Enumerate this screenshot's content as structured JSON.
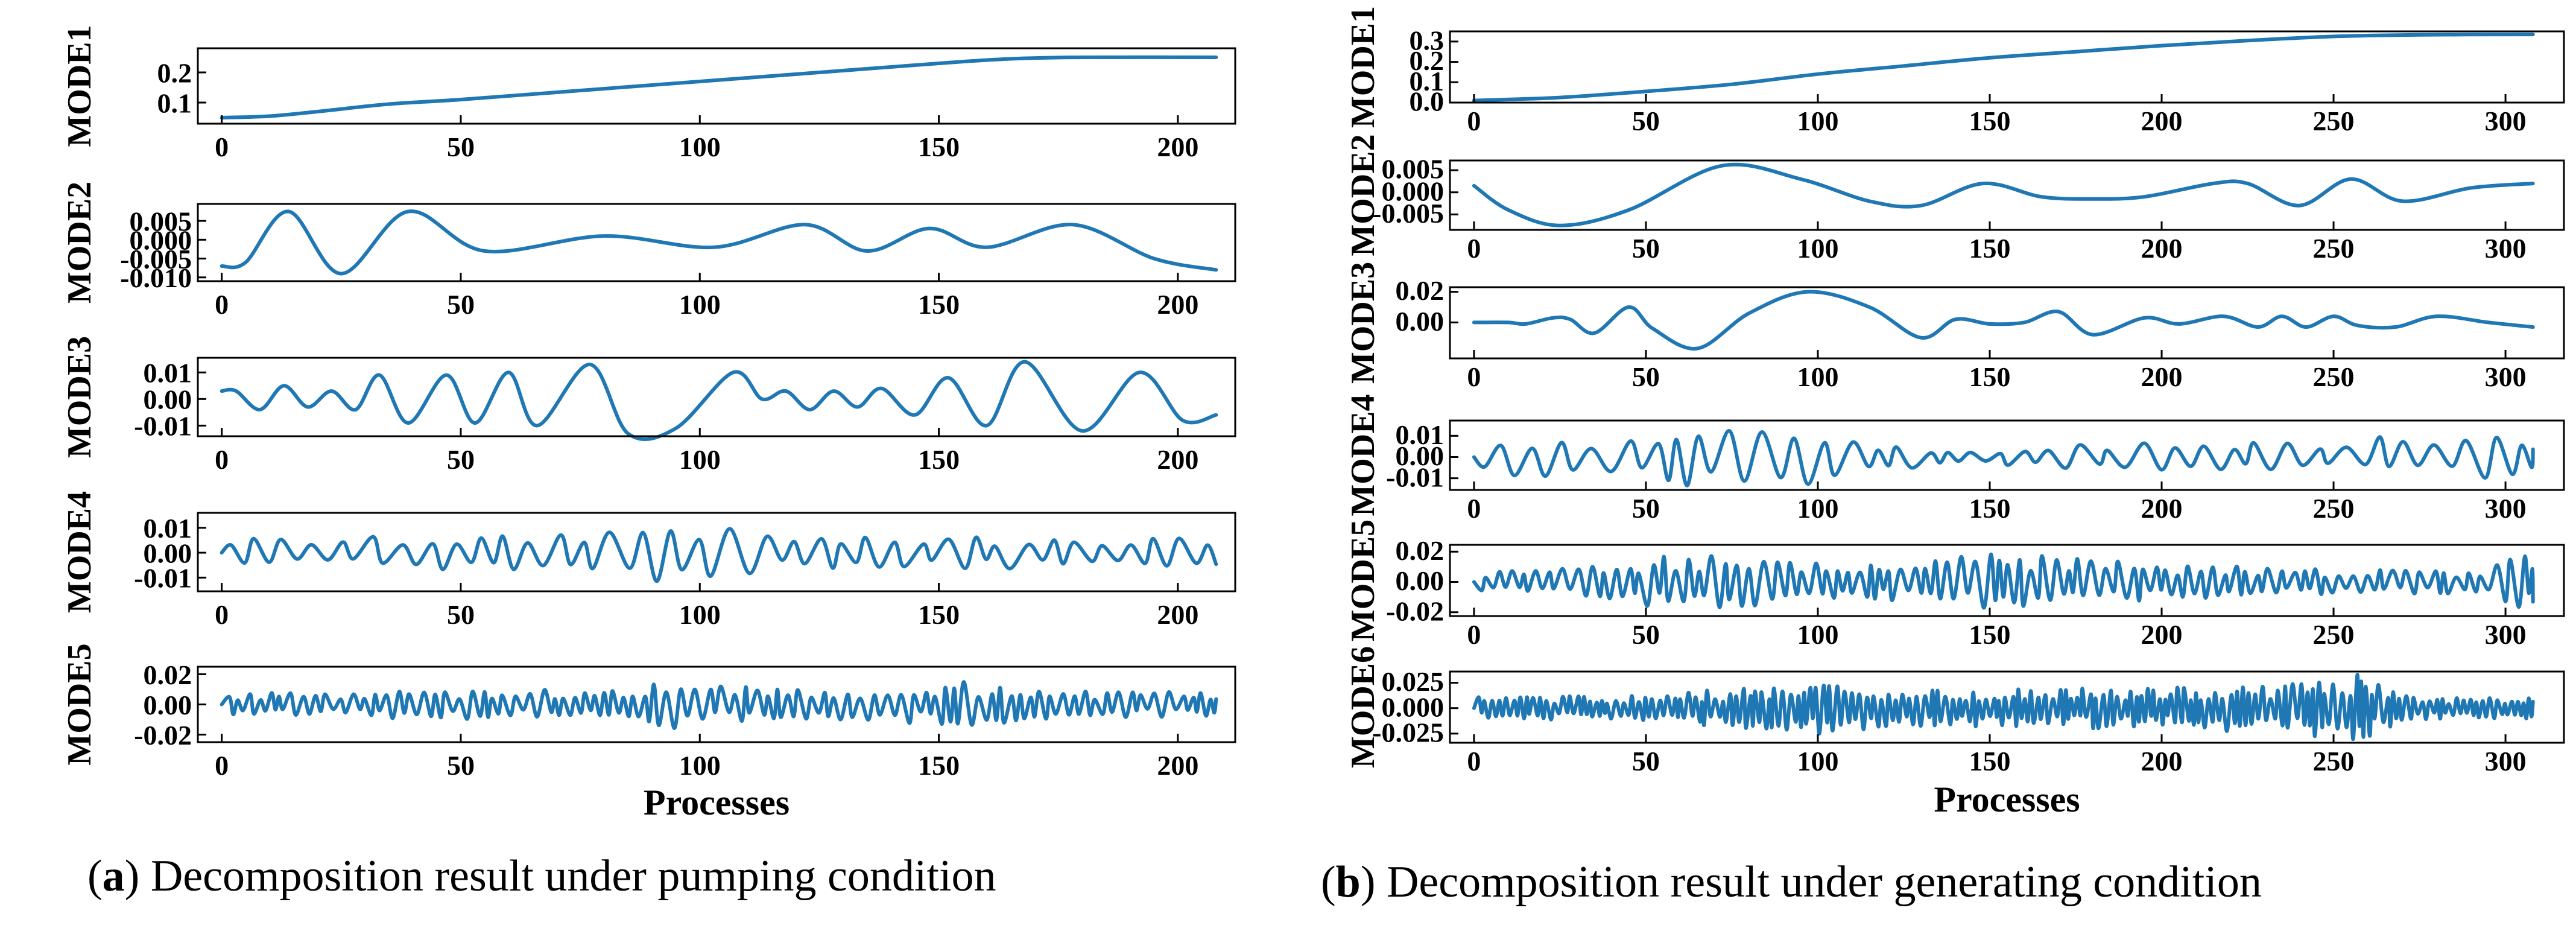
{
  "chart_data": [
    {
      "id": "a",
      "type": "line",
      "panel_caption_letter": "a",
      "panel_caption_text": " Decomposition result under pumping condition",
      "xlabel": "Processes",
      "xlim": [
        -5,
        212
      ],
      "xticks": [
        0,
        50,
        100,
        150,
        200
      ],
      "color": "#1f77b4",
      "subplots": [
        {
          "ylabel": "MODE1",
          "ylim": [
            0.03,
            0.28
          ],
          "yticks": [
            0.1,
            0.2
          ],
          "yticklabels": [
            "0.1",
            "0.2"
          ],
          "kind": "trend",
          "x_end": 208,
          "points": [
            [
              0,
              0.05
            ],
            [
              10,
              0.055
            ],
            [
              20,
              0.07
            ],
            [
              35,
              0.095
            ],
            [
              50,
              0.11
            ],
            [
              75,
              0.14
            ],
            [
              100,
              0.17
            ],
            [
              125,
              0.2
            ],
            [
              150,
              0.23
            ],
            [
              165,
              0.245
            ],
            [
              180,
              0.25
            ],
            [
              208,
              0.25
            ]
          ]
        },
        {
          "ylabel": "MODE2",
          "ylim": [
            -0.011,
            0.0095
          ],
          "yticks": [
            0.005,
            0.0,
            -0.005,
            -0.01
          ],
          "yticklabels": [
            "0.005",
            "0.000",
            "-0.005",
            "-0.010"
          ],
          "kind": "smooth",
          "x_end": 208,
          "points": [
            [
              0,
              -0.007
            ],
            [
              5,
              -0.006
            ],
            [
              14,
              0.0075
            ],
            [
              25,
              -0.009
            ],
            [
              39,
              0.0075
            ],
            [
              55,
              -0.003
            ],
            [
              80,
              0.001
            ],
            [
              103,
              -0.002
            ],
            [
              122,
              0.004
            ],
            [
              135,
              -0.003
            ],
            [
              148,
              0.003
            ],
            [
              160,
              -0.002
            ],
            [
              178,
              0.004
            ],
            [
              195,
              -0.005
            ],
            [
              208,
              -0.008
            ]
          ]
        },
        {
          "ylabel": "MODE3",
          "ylim": [
            -0.014,
            0.0155
          ],
          "yticks": [
            0.01,
            0.0,
            -0.01
          ],
          "yticklabels": [
            "0.01",
            "0.00",
            "-0.01"
          ],
          "kind": "smooth",
          "x_end": 208,
          "points": [
            [
              0,
              0.003
            ],
            [
              3,
              0.003
            ],
            [
              8,
              -0.004
            ],
            [
              13,
              0.005
            ],
            [
              18,
              -0.003
            ],
            [
              23,
              0.003
            ],
            [
              28,
              -0.004
            ],
            [
              33,
              0.009
            ],
            [
              39,
              -0.009
            ],
            [
              47,
              0.009
            ],
            [
              53,
              -0.009
            ],
            [
              60,
              0.01
            ],
            [
              66,
              -0.01
            ],
            [
              77,
              0.013
            ],
            [
              85,
              -0.013
            ],
            [
              95,
              -0.011
            ],
            [
              107,
              0.01
            ],
            [
              113,
              0.0
            ],
            [
              118,
              0.003
            ],
            [
              123,
              -0.004
            ],
            [
              128,
              0.003
            ],
            [
              133,
              -0.003
            ],
            [
              138,
              0.004
            ],
            [
              145,
              -0.006
            ],
            [
              152,
              0.008
            ],
            [
              160,
              -0.01
            ],
            [
              168,
              0.014
            ],
            [
              180,
              -0.012
            ],
            [
              192,
              0.01
            ],
            [
              201,
              -0.008
            ],
            [
              208,
              -0.006
            ]
          ]
        },
        {
          "ylabel": "MODE4",
          "ylim": [
            -0.0155,
            0.016
          ],
          "yticks": [
            0.01,
            0.0,
            -0.01
          ],
          "yticklabels": [
            "0.01",
            "0.00",
            "-0.01"
          ],
          "kind": "osc",
          "x_end": 208,
          "period": 6.0,
          "seed": 7,
          "envelope": [
            [
              0,
              0.006
            ],
            [
              60,
              0.007
            ],
            [
              75,
              0.01
            ],
            [
              85,
              0.011
            ],
            [
              95,
              0.014
            ],
            [
              105,
              0.01
            ],
            [
              130,
              0.006
            ],
            [
              160,
              0.007
            ],
            [
              185,
              0.008
            ],
            [
              208,
              0.005
            ]
          ]
        },
        {
          "ylabel": "MODE5",
          "ylim": [
            -0.025,
            0.025
          ],
          "yticks": [
            0.02,
            0.0,
            -0.02
          ],
          "yticklabels": [
            "0.02",
            "0.00",
            "-0.02"
          ],
          "kind": "osc",
          "x_end": 208,
          "period": 2.4,
          "seed": 13,
          "envelope": [
            [
              0,
              0.007
            ],
            [
              40,
              0.01
            ],
            [
              80,
              0.01
            ],
            [
              92,
              0.016
            ],
            [
              96,
              0.022
            ],
            [
              102,
              0.014
            ],
            [
              120,
              0.01
            ],
            [
              148,
              0.013
            ],
            [
              152,
              0.016
            ],
            [
              175,
              0.009
            ],
            [
              208,
              0.008
            ]
          ]
        }
      ]
    },
    {
      "id": "b",
      "type": "line",
      "panel_caption_letter": "b",
      "panel_caption_text": " Decomposition result under generating condition",
      "xlabel": "Processes",
      "xlim": [
        -7,
        317
      ],
      "xticks": [
        0,
        50,
        100,
        150,
        200,
        250,
        300
      ],
      "color": "#1f77b4",
      "subplots": [
        {
          "ylabel": "MODE1",
          "ylim": [
            0.0,
            0.35
          ],
          "yticks": [
            0.0,
            0.1,
            0.2,
            0.3
          ],
          "yticklabels": [
            "0.0",
            "0.1",
            "0.2",
            "0.3"
          ],
          "kind": "trend",
          "x_end": 308,
          "points": [
            [
              0,
              0.01
            ],
            [
              25,
              0.025
            ],
            [
              50,
              0.055
            ],
            [
              75,
              0.09
            ],
            [
              100,
              0.14
            ],
            [
              125,
              0.18
            ],
            [
              150,
              0.22
            ],
            [
              175,
              0.25
            ],
            [
              200,
              0.28
            ],
            [
              225,
              0.305
            ],
            [
              250,
              0.325
            ],
            [
              275,
              0.333
            ],
            [
              308,
              0.335
            ]
          ]
        },
        {
          "ylabel": "MODE2",
          "ylim": [
            -0.0085,
            0.0072
          ],
          "yticks": [
            0.005,
            0.0,
            -0.005
          ],
          "yticklabels": [
            "0.005",
            "0.000",
            "-0.005"
          ],
          "kind": "smooth",
          "x_end": 308,
          "points": [
            [
              0,
              0.0015
            ],
            [
              10,
              -0.004
            ],
            [
              25,
              -0.0075
            ],
            [
              45,
              -0.004
            ],
            [
              72,
              0.006
            ],
            [
              95,
              0.003
            ],
            [
              115,
              -0.002
            ],
            [
              130,
              -0.003
            ],
            [
              148,
              0.002
            ],
            [
              165,
              -0.001
            ],
            [
              180,
              -0.0015
            ],
            [
              195,
              -0.001
            ],
            [
              215,
              0.002
            ],
            [
              225,
              0.002
            ],
            [
              240,
              -0.003
            ],
            [
              255,
              0.003
            ],
            [
              270,
              -0.002
            ],
            [
              290,
              0.001
            ],
            [
              308,
              0.002
            ]
          ]
        },
        {
          "ylabel": "MODE3",
          "ylim": [
            -0.0235,
            0.023
          ],
          "yticks": [
            0.02,
            0.0
          ],
          "yticklabels": [
            "0.02",
            "0.00"
          ],
          "kind": "smooth",
          "x_end": 308,
          "points": [
            [
              0,
              0.0
            ],
            [
              10,
              0.0
            ],
            [
              15,
              -0.001
            ],
            [
              23,
              0.003
            ],
            [
              28,
              0.002
            ],
            [
              35,
              -0.007
            ],
            [
              45,
              0.01
            ],
            [
              52,
              -0.004
            ],
            [
              65,
              -0.017
            ],
            [
              80,
              0.006
            ],
            [
              97,
              0.02
            ],
            [
              115,
              0.01
            ],
            [
              130,
              -0.01
            ],
            [
              140,
              0.002
            ],
            [
              150,
              -0.001
            ],
            [
              160,
              0.0
            ],
            [
              170,
              0.007
            ],
            [
              180,
              -0.008
            ],
            [
              195,
              0.003
            ],
            [
              205,
              -0.001
            ],
            [
              218,
              0.004
            ],
            [
              228,
              -0.003
            ],
            [
              235,
              0.004
            ],
            [
              242,
              -0.003
            ],
            [
              250,
              0.004
            ],
            [
              257,
              -0.002
            ],
            [
              268,
              -0.003
            ],
            [
              280,
              0.004
            ],
            [
              295,
              0.0
            ],
            [
              308,
              -0.003
            ]
          ]
        },
        {
          "ylabel": "MODE4",
          "ylim": [
            -0.0155,
            0.0172
          ],
          "yticks": [
            0.01,
            0.0,
            -0.01
          ],
          "yticklabels": [
            "0.01",
            "0.00",
            "-0.01"
          ],
          "kind": "osc",
          "x_end": 308,
          "period": 8.0,
          "seed": 21,
          "envelope": [
            [
              0,
              0.009
            ],
            [
              40,
              0.009
            ],
            [
              55,
              0.012
            ],
            [
              65,
              0.015
            ],
            [
              80,
              0.012
            ],
            [
              95,
              0.015
            ],
            [
              110,
              0.015
            ],
            [
              120,
              0.006
            ],
            [
              150,
              0.004
            ],
            [
              200,
              0.008
            ],
            [
              240,
              0.007
            ],
            [
              285,
              0.012
            ],
            [
              308,
              0.009
            ]
          ]
        },
        {
          "ylabel": "MODE5",
          "ylim": [
            -0.0225,
            0.0245
          ],
          "yticks": [
            0.02,
            0.0,
            -0.02
          ],
          "yticklabels": [
            "0.02",
            "0.00",
            "-0.02"
          ],
          "kind": "osc",
          "x_end": 308,
          "period": 3.6,
          "seed": 33,
          "envelope": [
            [
              0,
              0.006
            ],
            [
              30,
              0.01
            ],
            [
              50,
              0.016
            ],
            [
              60,
              0.02
            ],
            [
              90,
              0.014
            ],
            [
              120,
              0.012
            ],
            [
              150,
              0.021
            ],
            [
              175,
              0.017
            ],
            [
              200,
              0.012
            ],
            [
              250,
              0.008
            ],
            [
              290,
              0.008
            ],
            [
              305,
              0.019
            ],
            [
              308,
              0.015
            ]
          ]
        },
        {
          "ylabel": "MODE6",
          "ylim": [
            -0.034,
            0.036
          ],
          "yticks": [
            0.025,
            0.0,
            -0.025
          ],
          "yticklabels": [
            "0.025",
            "0.000",
            "-0.025"
          ],
          "kind": "osc",
          "x_end": 308,
          "period": 2.0,
          "seed": 47,
          "envelope": [
            [
              0,
              0.012
            ],
            [
              40,
              0.012
            ],
            [
              80,
              0.02
            ],
            [
              95,
              0.03
            ],
            [
              120,
              0.018
            ],
            [
              150,
              0.02
            ],
            [
              200,
              0.02
            ],
            [
              235,
              0.026
            ],
            [
              258,
              0.034
            ],
            [
              270,
              0.012
            ],
            [
              308,
              0.01
            ]
          ]
        }
      ]
    }
  ]
}
